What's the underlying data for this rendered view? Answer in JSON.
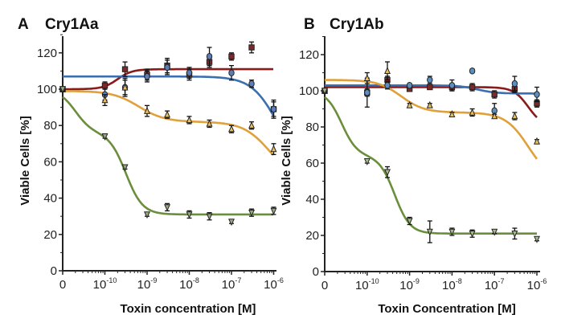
{
  "chart_data": [
    {
      "type": "scatter",
      "panel_letter": "A",
      "title": "Cry1Aa",
      "xlabel": "Toxin concentration [M]",
      "ylabel": "Viable Cells [%]",
      "xscale": "log (with zero control)",
      "x_tick_labels": [
        {
          "base": "0",
          "exp": ""
        },
        {
          "base": "10",
          "exp": "-10"
        },
        {
          "base": "10",
          "exp": "-9"
        },
        {
          "base": "10",
          "exp": "-8"
        },
        {
          "base": "10",
          "exp": "-7"
        },
        {
          "base": "10",
          "exp": "-6"
        }
      ],
      "y_ticks": [
        0,
        20,
        40,
        60,
        80,
        100,
        120
      ],
      "ylim": [
        0,
        130
      ],
      "x": [
        "0",
        "1e-10",
        "3e-10",
        "1e-9",
        "3e-9",
        "1e-8",
        "3e-8",
        "1e-7",
        "3e-7",
        "1e-6"
      ],
      "series": [
        {
          "name": "red",
          "color": "#8b1a1a",
          "marker": "square",
          "marker_fill": "#7a2a2a",
          "values": [
            100,
            102,
            111,
            108,
            113,
            108,
            115,
            118,
            123,
            89
          ],
          "errors": [
            1,
            2,
            4,
            3,
            4,
            3,
            3,
            2,
            3,
            4
          ],
          "fit": {
            "bottom": 100,
            "top": 111,
            "log_ec50": -9.7,
            "hill": 2.5
          }
        },
        {
          "name": "blue",
          "color": "#3c6fb0",
          "marker": "circle",
          "marker_fill": "#5a7fb8",
          "values": [
            100,
            97,
            101,
            107,
            112,
            109,
            118,
            109,
            103,
            89
          ],
          "errors": [
            1,
            3,
            4,
            3,
            4,
            3,
            5,
            4,
            2,
            5
          ],
          "fit": {
            "top": 107,
            "bottom": 55,
            "log_ec50": -5.9,
            "hill": 1.4
          }
        },
        {
          "name": "orange",
          "color": "#e0a03a",
          "marker": "triangle-up",
          "marker_fill": "#e8c060",
          "values": [
            100,
            94,
            101,
            88,
            86,
            83,
            81,
            78,
            80,
            67
          ],
          "errors": [
            1,
            3,
            5,
            3,
            2,
            2,
            2,
            2,
            2,
            3
          ],
          "fit": {
            "top": 99,
            "mid": 82,
            "bottom": 50,
            "log_ec50_1": -9.2,
            "log_ec50_2": -6.1,
            "hill": 1.4
          }
        },
        {
          "name": "green",
          "color": "#6a8f3c",
          "marker": "triangle-down",
          "marker_fill": "#9aa880",
          "values": [
            100,
            74,
            57,
            31,
            35,
            31,
            30,
            27,
            32,
            33
          ],
          "errors": [
            1,
            1,
            1,
            1,
            2,
            2,
            2,
            1,
            2,
            2
          ],
          "fit": {
            "top": 100,
            "mid": 76,
            "bottom": 31,
            "log_ec50_1": -10.7,
            "log_ec50_2": -9.5,
            "hill": 2.2
          }
        }
      ]
    },
    {
      "type": "scatter",
      "panel_letter": "B",
      "title": "Cry1Ab",
      "xlabel": "Toxin Concentration [M]",
      "ylabel": "Viable Cells [%]",
      "xscale": "log (with zero control)",
      "x_tick_labels": [
        {
          "base": "0",
          "exp": ""
        },
        {
          "base": "10",
          "exp": "-10"
        },
        {
          "base": "10",
          "exp": "-9"
        },
        {
          "base": "10",
          "exp": "-8"
        },
        {
          "base": "10",
          "exp": "-7"
        },
        {
          "base": "10",
          "exp": "-6"
        }
      ],
      "y_ticks": [
        0,
        20,
        40,
        60,
        80,
        100,
        120
      ],
      "ylim": [
        0,
        130
      ],
      "x": [
        "0",
        "1e-10",
        "3e-10",
        "1e-9",
        "3e-9",
        "1e-8",
        "3e-8",
        "1e-7",
        "3e-7",
        "1e-6"
      ],
      "series": [
        {
          "name": "red",
          "color": "#8b1a1a",
          "marker": "square",
          "marker_fill": "#7a2a2a",
          "values": [
            100,
            99,
            106,
            101,
            102,
            102,
            102,
            98,
            101,
            93
          ],
          "errors": [
            1,
            2,
            2,
            1,
            1,
            2,
            2,
            2,
            2,
            2
          ],
          "fit": {
            "top": 102,
            "bottom": 80,
            "log_ec50": -6.2,
            "hill": 2.5
          }
        },
        {
          "name": "blue",
          "color": "#3c6fb0",
          "marker": "circle",
          "marker_fill": "#5a8fc0",
          "values": [
            100,
            99,
            103,
            103,
            106,
            103,
            111,
            89,
            104,
            98
          ],
          "errors": [
            1,
            8,
            2,
            1,
            2,
            3,
            1,
            4,
            4,
            4
          ],
          "fit": {
            "top": 103,
            "bottom": 98.5,
            "log_ec50": -7.4,
            "hill": 2
          }
        },
        {
          "name": "orange",
          "color": "#e0a03a",
          "marker": "triangle-up",
          "marker_fill": "#e8c060",
          "values": [
            100,
            107,
            111,
            92,
            92,
            87,
            88,
            86,
            86,
            72
          ],
          "errors": [
            1,
            3,
            5,
            1,
            1,
            1,
            2,
            1,
            2,
            1
          ],
          "fit": {
            "top": 106,
            "mid": 88,
            "bottom": 50,
            "log_ec50_1": -9.2,
            "log_ec50_2": -6.2,
            "hill": 1.6
          }
        },
        {
          "name": "green",
          "color": "#6a8f3c",
          "marker": "triangle-down",
          "marker_fill": "#a8b890",
          "values": [
            100,
            61,
            55,
            28,
            22,
            22,
            21,
            22,
            21,
            18
          ],
          "errors": [
            1,
            1,
            3,
            2,
            6,
            2,
            2,
            1,
            3,
            1
          ],
          "fit": {
            "top": 100,
            "mid": 64,
            "bottom": 21,
            "log_ec50_1": -10.6,
            "log_ec50_2": -9.35,
            "hill": 2.4
          }
        }
      ]
    }
  ]
}
